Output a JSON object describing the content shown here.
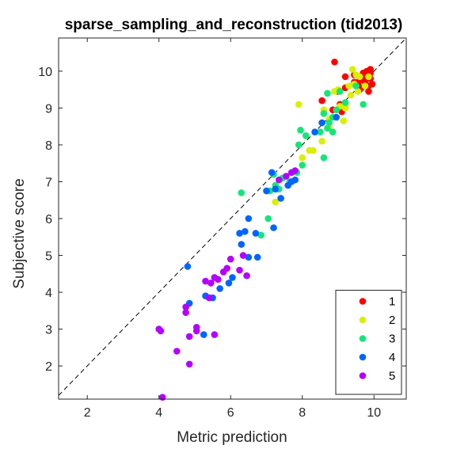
{
  "chart_data": {
    "type": "scatter",
    "title": "sparse_sampling_and_reconstruction (tid2013)",
    "xlabel": "Metric prediction",
    "ylabel": "Subjective score",
    "xlim": [
      1.2,
      10.9
    ],
    "ylim": [
      1.1,
      10.9
    ],
    "xticks": [
      2,
      4,
      6,
      8,
      10
    ],
    "yticks": [
      2,
      3,
      4,
      5,
      6,
      7,
      8,
      9,
      10
    ],
    "grid": false,
    "reference_line": "y = x (dashed)",
    "legend_position": "bottom-right",
    "series": [
      {
        "name": "1",
        "color": "#ff0000",
        "points": [
          [
            8.9,
            10.25
          ],
          [
            9.2,
            9.85
          ],
          [
            9.45,
            9.9
          ],
          [
            9.6,
            9.75
          ],
          [
            9.7,
            9.95
          ],
          [
            9.8,
            10.0
          ],
          [
            9.85,
            9.9
          ],
          [
            9.9,
            10.05
          ],
          [
            9.75,
            9.7
          ],
          [
            9.65,
            9.55
          ],
          [
            9.55,
            9.65
          ],
          [
            9.85,
            9.6
          ],
          [
            9.9,
            9.8
          ],
          [
            9.95,
            9.65
          ],
          [
            9.85,
            9.45
          ],
          [
            9.6,
            9.5
          ],
          [
            9.7,
            9.85
          ],
          [
            9.2,
            9.55
          ],
          [
            9.0,
            9.45
          ],
          [
            8.85,
            8.95
          ],
          [
            9.05,
            9.1
          ],
          [
            9.1,
            8.9
          ],
          [
            8.55,
            9.2
          ],
          [
            9.9,
            9.95
          ],
          [
            9.45,
            9.7
          ],
          [
            9.75,
            9.85
          ]
        ]
      },
      {
        "name": "2",
        "color": "#d9f000",
        "points": [
          [
            9.4,
            10.05
          ],
          [
            9.5,
            9.9
          ],
          [
            9.85,
            9.85
          ],
          [
            9.75,
            9.6
          ],
          [
            9.6,
            9.85
          ],
          [
            9.3,
            9.6
          ],
          [
            9.55,
            9.45
          ],
          [
            9.35,
            9.35
          ],
          [
            9.2,
            9.1
          ],
          [
            9.0,
            9.5
          ],
          [
            8.9,
            9.45
          ],
          [
            8.6,
            8.95
          ],
          [
            8.75,
            8.7
          ],
          [
            9.15,
            8.65
          ],
          [
            7.9,
            9.1
          ],
          [
            8.55,
            8.1
          ],
          [
            8.3,
            7.85
          ],
          [
            8.2,
            7.85
          ],
          [
            8.0,
            7.65
          ],
          [
            7.25,
            6.45
          ],
          [
            8.75,
            8.45
          ],
          [
            9.05,
            9.05
          ],
          [
            9.2,
            9.0
          ],
          [
            9.45,
            9.65
          ]
        ]
      },
      {
        "name": "3",
        "color": "#14e678",
        "points": [
          [
            9.2,
            9.15
          ],
          [
            9.7,
            9.1
          ],
          [
            9.5,
            9.6
          ],
          [
            9.05,
            9.45
          ],
          [
            8.95,
            8.95
          ],
          [
            8.7,
            9.4
          ],
          [
            8.85,
            8.75
          ],
          [
            8.6,
            8.85
          ],
          [
            8.55,
            8.6
          ],
          [
            8.75,
            8.6
          ],
          [
            8.7,
            8.45
          ],
          [
            8.85,
            8.35
          ],
          [
            8.5,
            8.35
          ],
          [
            7.95,
            8.4
          ],
          [
            8.1,
            8.25
          ],
          [
            7.9,
            8.0
          ],
          [
            8.0,
            7.45
          ],
          [
            7.85,
            7.25
          ],
          [
            8.6,
            7.65
          ],
          [
            7.65,
            7.0
          ],
          [
            7.35,
            6.8
          ],
          [
            7.25,
            6.9
          ],
          [
            7.2,
            7.2
          ],
          [
            7.1,
            6.75
          ],
          [
            6.3,
            6.7
          ],
          [
            7.05,
            6.0
          ],
          [
            6.85,
            5.55
          ],
          [
            7.45,
            7.1
          ]
        ]
      },
      {
        "name": "4",
        "color": "#0064ff",
        "points": [
          [
            8.35,
            8.35
          ],
          [
            8.55,
            8.6
          ],
          [
            8.95,
            8.75
          ],
          [
            7.7,
            7.0
          ],
          [
            7.8,
            7.05
          ],
          [
            7.6,
            6.9
          ],
          [
            7.4,
            6.55
          ],
          [
            7.15,
            7.25
          ],
          [
            7.25,
            6.8
          ],
          [
            7.0,
            6.75
          ],
          [
            6.5,
            6.0
          ],
          [
            6.7,
            5.6
          ],
          [
            6.4,
            5.65
          ],
          [
            6.25,
            5.6
          ],
          [
            6.3,
            5.3
          ],
          [
            7.2,
            5.75
          ],
          [
            6.75,
            4.95
          ],
          [
            6.5,
            4.95
          ],
          [
            6.05,
            4.4
          ],
          [
            5.95,
            4.25
          ],
          [
            5.7,
            4.1
          ],
          [
            5.5,
            3.85
          ],
          [
            5.3,
            3.9
          ],
          [
            5.25,
            2.85
          ],
          [
            4.85,
            3.7
          ],
          [
            4.8,
            4.7
          ]
        ]
      },
      {
        "name": "5",
        "color": "#b400ff",
        "points": [
          [
            7.8,
            7.3
          ],
          [
            7.7,
            7.25
          ],
          [
            7.55,
            7.15
          ],
          [
            7.35,
            7.05
          ],
          [
            6.35,
            5.0
          ],
          [
            6.45,
            4.45
          ],
          [
            6.25,
            4.6
          ],
          [
            6.0,
            4.9
          ],
          [
            5.9,
            4.65
          ],
          [
            5.8,
            4.55
          ],
          [
            5.65,
            4.35
          ],
          [
            5.55,
            4.4
          ],
          [
            5.45,
            4.25
          ],
          [
            5.3,
            4.3
          ],
          [
            5.4,
            3.85
          ],
          [
            5.05,
            3.05
          ],
          [
            5.05,
            2.95
          ],
          [
            5.55,
            2.85
          ],
          [
            4.85,
            2.8
          ],
          [
            4.75,
            3.6
          ],
          [
            4.75,
            3.45
          ],
          [
            4.05,
            2.95
          ],
          [
            4.0,
            3.0
          ],
          [
            4.5,
            2.4
          ],
          [
            4.85,
            2.05
          ],
          [
            4.1,
            1.15
          ]
        ]
      }
    ]
  }
}
